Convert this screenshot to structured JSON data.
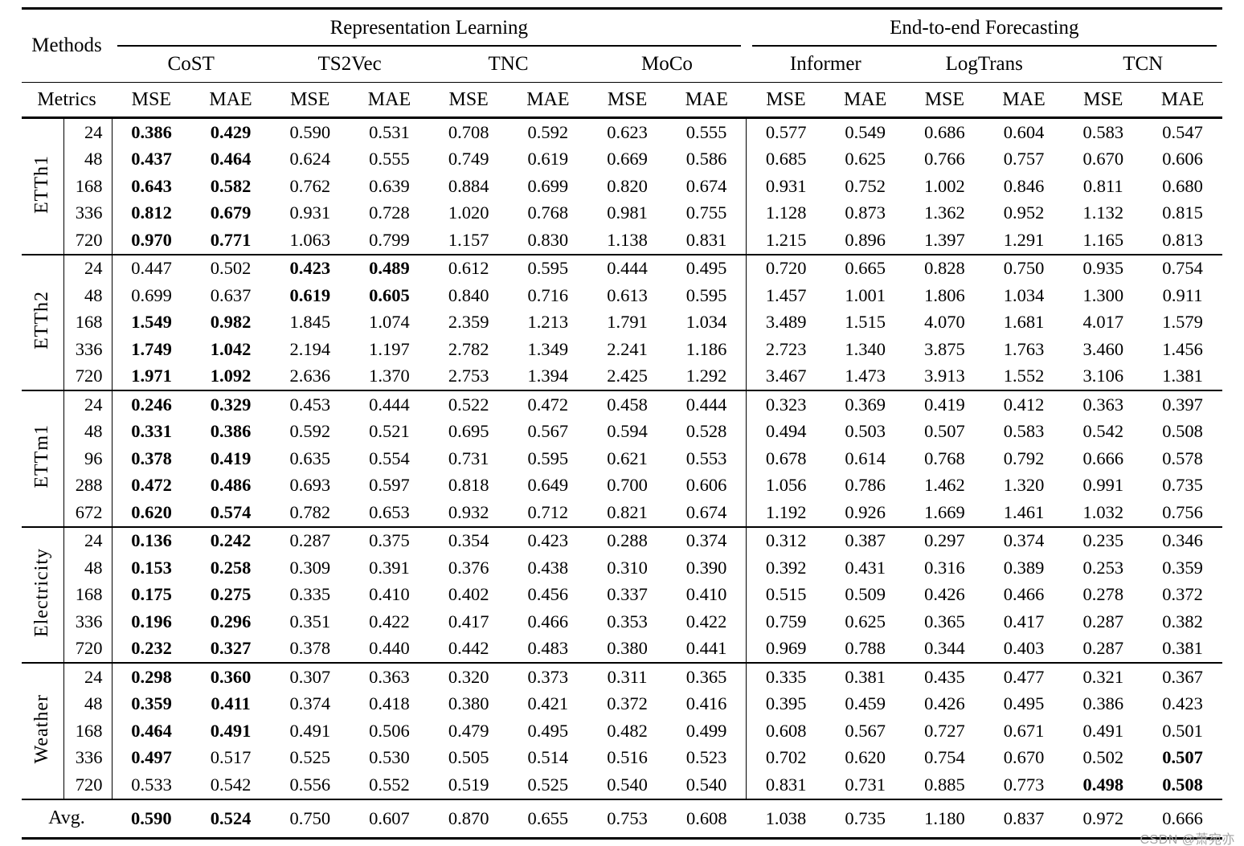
{
  "header": {
    "methods_label": "Methods",
    "metrics_label": "Metrics",
    "groups": [
      {
        "label": "Representation Learning",
        "methods": [
          "CoST",
          "TS2Vec",
          "TNC",
          "MoCo"
        ]
      },
      {
        "label": "End-to-end Forecasting",
        "methods": [
          "Informer",
          "LogTrans",
          "TCN"
        ]
      }
    ],
    "metric_labels": [
      "MSE",
      "MAE"
    ]
  },
  "blocks": [
    {
      "dataset": "ETTh1",
      "rows": [
        {
          "horizon": "24",
          "values": [
            "0.386",
            "0.429",
            "0.590",
            "0.531",
            "0.708",
            "0.592",
            "0.623",
            "0.555",
            "0.577",
            "0.549",
            "0.686",
            "0.604",
            "0.583",
            "0.547"
          ],
          "bold": [
            0,
            1
          ]
        },
        {
          "horizon": "48",
          "values": [
            "0.437",
            "0.464",
            "0.624",
            "0.555",
            "0.749",
            "0.619",
            "0.669",
            "0.586",
            "0.685",
            "0.625",
            "0.766",
            "0.757",
            "0.670",
            "0.606"
          ],
          "bold": [
            0,
            1
          ]
        },
        {
          "horizon": "168",
          "values": [
            "0.643",
            "0.582",
            "0.762",
            "0.639",
            "0.884",
            "0.699",
            "0.820",
            "0.674",
            "0.931",
            "0.752",
            "1.002",
            "0.846",
            "0.811",
            "0.680"
          ],
          "bold": [
            0,
            1
          ]
        },
        {
          "horizon": "336",
          "values": [
            "0.812",
            "0.679",
            "0.931",
            "0.728",
            "1.020",
            "0.768",
            "0.981",
            "0.755",
            "1.128",
            "0.873",
            "1.362",
            "0.952",
            "1.132",
            "0.815"
          ],
          "bold": [
            0,
            1
          ]
        },
        {
          "horizon": "720",
          "values": [
            "0.970",
            "0.771",
            "1.063",
            "0.799",
            "1.157",
            "0.830",
            "1.138",
            "0.831",
            "1.215",
            "0.896",
            "1.397",
            "1.291",
            "1.165",
            "0.813"
          ],
          "bold": [
            0,
            1
          ]
        }
      ]
    },
    {
      "dataset": "ETTh2",
      "rows": [
        {
          "horizon": "24",
          "values": [
            "0.447",
            "0.502",
            "0.423",
            "0.489",
            "0.612",
            "0.595",
            "0.444",
            "0.495",
            "0.720",
            "0.665",
            "0.828",
            "0.750",
            "0.935",
            "0.754"
          ],
          "bold": [
            2,
            3
          ]
        },
        {
          "horizon": "48",
          "values": [
            "0.699",
            "0.637",
            "0.619",
            "0.605",
            "0.840",
            "0.716",
            "0.613",
            "0.595",
            "1.457",
            "1.001",
            "1.806",
            "1.034",
            "1.300",
            "0.911"
          ],
          "bold": [
            2,
            3
          ]
        },
        {
          "horizon": "168",
          "values": [
            "1.549",
            "0.982",
            "1.845",
            "1.074",
            "2.359",
            "1.213",
            "1.791",
            "1.034",
            "3.489",
            "1.515",
            "4.070",
            "1.681",
            "4.017",
            "1.579"
          ],
          "bold": [
            0,
            1
          ]
        },
        {
          "horizon": "336",
          "values": [
            "1.749",
            "1.042",
            "2.194",
            "1.197",
            "2.782",
            "1.349",
            "2.241",
            "1.186",
            "2.723",
            "1.340",
            "3.875",
            "1.763",
            "3.460",
            "1.456"
          ],
          "bold": [
            0,
            1
          ]
        },
        {
          "horizon": "720",
          "values": [
            "1.971",
            "1.092",
            "2.636",
            "1.370",
            "2.753",
            "1.394",
            "2.425",
            "1.292",
            "3.467",
            "1.473",
            "3.913",
            "1.552",
            "3.106",
            "1.381"
          ],
          "bold": [
            0,
            1
          ]
        }
      ]
    },
    {
      "dataset": "ETTm1",
      "rows": [
        {
          "horizon": "24",
          "values": [
            "0.246",
            "0.329",
            "0.453",
            "0.444",
            "0.522",
            "0.472",
            "0.458",
            "0.444",
            "0.323",
            "0.369",
            "0.419",
            "0.412",
            "0.363",
            "0.397"
          ],
          "bold": [
            0,
            1
          ]
        },
        {
          "horizon": "48",
          "values": [
            "0.331",
            "0.386",
            "0.592",
            "0.521",
            "0.695",
            "0.567",
            "0.594",
            "0.528",
            "0.494",
            "0.503",
            "0.507",
            "0.583",
            "0.542",
            "0.508"
          ],
          "bold": [
            0,
            1
          ]
        },
        {
          "horizon": "96",
          "values": [
            "0.378",
            "0.419",
            "0.635",
            "0.554",
            "0.731",
            "0.595",
            "0.621",
            "0.553",
            "0.678",
            "0.614",
            "0.768",
            "0.792",
            "0.666",
            "0.578"
          ],
          "bold": [
            0,
            1
          ]
        },
        {
          "horizon": "288",
          "values": [
            "0.472",
            "0.486",
            "0.693",
            "0.597",
            "0.818",
            "0.649",
            "0.700",
            "0.606",
            "1.056",
            "0.786",
            "1.462",
            "1.320",
            "0.991",
            "0.735"
          ],
          "bold": [
            0,
            1
          ]
        },
        {
          "horizon": "672",
          "values": [
            "0.620",
            "0.574",
            "0.782",
            "0.653",
            "0.932",
            "0.712",
            "0.821",
            "0.674",
            "1.192",
            "0.926",
            "1.669",
            "1.461",
            "1.032",
            "0.756"
          ],
          "bold": [
            0,
            1
          ]
        }
      ]
    },
    {
      "dataset": "Electricity",
      "rows": [
        {
          "horizon": "24",
          "values": [
            "0.136",
            "0.242",
            "0.287",
            "0.375",
            "0.354",
            "0.423",
            "0.288",
            "0.374",
            "0.312",
            "0.387",
            "0.297",
            "0.374",
            "0.235",
            "0.346"
          ],
          "bold": [
            0,
            1
          ]
        },
        {
          "horizon": "48",
          "values": [
            "0.153",
            "0.258",
            "0.309",
            "0.391",
            "0.376",
            "0.438",
            "0.310",
            "0.390",
            "0.392",
            "0.431",
            "0.316",
            "0.389",
            "0.253",
            "0.359"
          ],
          "bold": [
            0,
            1
          ]
        },
        {
          "horizon": "168",
          "values": [
            "0.175",
            "0.275",
            "0.335",
            "0.410",
            "0.402",
            "0.456",
            "0.337",
            "0.410",
            "0.515",
            "0.509",
            "0.426",
            "0.466",
            "0.278",
            "0.372"
          ],
          "bold": [
            0,
            1
          ]
        },
        {
          "horizon": "336",
          "values": [
            "0.196",
            "0.296",
            "0.351",
            "0.422",
            "0.417",
            "0.466",
            "0.353",
            "0.422",
            "0.759",
            "0.625",
            "0.365",
            "0.417",
            "0.287",
            "0.382"
          ],
          "bold": [
            0,
            1
          ]
        },
        {
          "horizon": "720",
          "values": [
            "0.232",
            "0.327",
            "0.378",
            "0.440",
            "0.442",
            "0.483",
            "0.380",
            "0.441",
            "0.969",
            "0.788",
            "0.344",
            "0.403",
            "0.287",
            "0.381"
          ],
          "bold": [
            0,
            1
          ]
        }
      ]
    },
    {
      "dataset": "Weather",
      "rows": [
        {
          "horizon": "24",
          "values": [
            "0.298",
            "0.360",
            "0.307",
            "0.363",
            "0.320",
            "0.373",
            "0.311",
            "0.365",
            "0.335",
            "0.381",
            "0.435",
            "0.477",
            "0.321",
            "0.367"
          ],
          "bold": [
            0,
            1
          ]
        },
        {
          "horizon": "48",
          "values": [
            "0.359",
            "0.411",
            "0.374",
            "0.418",
            "0.380",
            "0.421",
            "0.372",
            "0.416",
            "0.395",
            "0.459",
            "0.426",
            "0.495",
            "0.386",
            "0.423"
          ],
          "bold": [
            0,
            1
          ]
        },
        {
          "horizon": "168",
          "values": [
            "0.464",
            "0.491",
            "0.491",
            "0.506",
            "0.479",
            "0.495",
            "0.482",
            "0.499",
            "0.608",
            "0.567",
            "0.727",
            "0.671",
            "0.491",
            "0.501"
          ],
          "bold": [
            0,
            1
          ]
        },
        {
          "horizon": "336",
          "values": [
            "0.497",
            "0.517",
            "0.525",
            "0.530",
            "0.505",
            "0.514",
            "0.516",
            "0.523",
            "0.702",
            "0.620",
            "0.754",
            "0.670",
            "0.502",
            "0.507"
          ],
          "bold": [
            0,
            13
          ]
        },
        {
          "horizon": "720",
          "values": [
            "0.533",
            "0.542",
            "0.556",
            "0.552",
            "0.519",
            "0.525",
            "0.540",
            "0.540",
            "0.831",
            "0.731",
            "0.885",
            "0.773",
            "0.498",
            "0.508"
          ],
          "bold": [
            12,
            13
          ]
        }
      ]
    }
  ],
  "avg": {
    "label": "Avg.",
    "values": [
      "0.590",
      "0.524",
      "0.750",
      "0.607",
      "0.870",
      "0.655",
      "0.753",
      "0.608",
      "1.038",
      "0.735",
      "1.180",
      "0.837",
      "0.972",
      "0.666"
    ],
    "bold": [
      0,
      1
    ]
  },
  "watermark": "CSDN @萧宛亦"
}
